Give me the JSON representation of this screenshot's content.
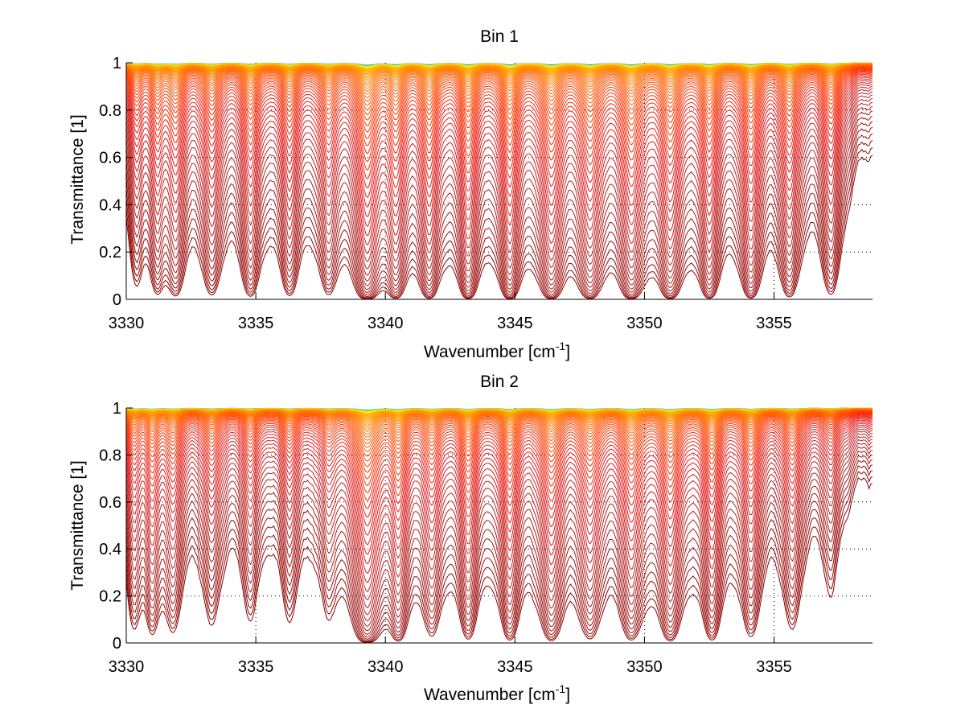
{
  "chart_data": [
    {
      "type": "line",
      "title": "Bin 1",
      "xlabel": "Wavenumber [cm^-1]",
      "xlabel_base": "Wavenumber [cm",
      "xlabel_sup": "-1",
      "xlabel_close": "]",
      "ylabel": "Transmittance [1]",
      "xlim": [
        3330,
        3358.8
      ],
      "ylim": [
        0,
        1
      ],
      "xticks": [
        3330,
        3335,
        3340,
        3345,
        3350,
        3355
      ],
      "xtick_labels": [
        "3330",
        "3335",
        "3340",
        "3345",
        "3350",
        "3355"
      ],
      "yticks": [
        0,
        0.2,
        0.4,
        0.6,
        0.8,
        1
      ],
      "ytick_labels": [
        "0",
        "0.2",
        "0.4",
        "0.6",
        "0.8",
        "1"
      ],
      "grid": "dotted",
      "legend": "none",
      "series_count": 60,
      "colormap": [
        "#8b0000",
        "#b22222",
        "#e41a1c",
        "#ff3300",
        "#ff6600",
        "#ff9900",
        "#ffcc00",
        "#ffff33",
        "#66cc66",
        "#3399cc"
      ],
      "description": "Family of transmittance spectra at increasing optical depth; each curve rises from near 0 (dark red) to near 1 (yellow/blue), with absorption lines recurring at approximately these wavenumbers.",
      "absorption_lines": [
        {
          "x": 3330.4,
          "depth": 0.35,
          "width": 0.25
        },
        {
          "x": 3331.2,
          "depth": 0.45,
          "width": 0.25
        },
        {
          "x": 3331.9,
          "depth": 0.55,
          "width": 0.3
        },
        {
          "x": 3333.3,
          "depth": 0.55,
          "width": 0.3
        },
        {
          "x": 3334.8,
          "depth": 0.6,
          "width": 0.3
        },
        {
          "x": 3336.3,
          "depth": 0.55,
          "width": 0.3
        },
        {
          "x": 3337.8,
          "depth": 0.5,
          "width": 0.3
        },
        {
          "x": 3339.3,
          "depth": 1.0,
          "width": 0.35
        },
        {
          "x": 3340.4,
          "depth": 0.7,
          "width": 0.3
        },
        {
          "x": 3341.7,
          "depth": 0.75,
          "width": 0.3
        },
        {
          "x": 3343.2,
          "depth": 0.8,
          "width": 0.3
        },
        {
          "x": 3344.8,
          "depth": 0.85,
          "width": 0.3
        },
        {
          "x": 3346.4,
          "depth": 0.85,
          "width": 0.35
        },
        {
          "x": 3347.9,
          "depth": 0.8,
          "width": 0.35
        },
        {
          "x": 3349.5,
          "depth": 0.85,
          "width": 0.35
        },
        {
          "x": 3351.0,
          "depth": 0.8,
          "width": 0.35
        },
        {
          "x": 3352.5,
          "depth": 0.75,
          "width": 0.3
        },
        {
          "x": 3354.1,
          "depth": 0.75,
          "width": 0.3
        },
        {
          "x": 3355.6,
          "depth": 0.65,
          "width": 0.3
        },
        {
          "x": 3357.2,
          "depth": 0.55,
          "width": 0.3
        }
      ]
    },
    {
      "type": "line",
      "title": "Bin 2",
      "xlabel": "Wavenumber [cm^-1]",
      "xlabel_base": "Wavenumber [cm",
      "xlabel_sup": "-1",
      "xlabel_close": "]",
      "ylabel": "Transmittance [1]",
      "xlim": [
        3330,
        3358.8
      ],
      "ylim": [
        0,
        1
      ],
      "xticks": [
        3330,
        3335,
        3340,
        3345,
        3350,
        3355
      ],
      "xtick_labels": [
        "3330",
        "3335",
        "3340",
        "3345",
        "3350",
        "3355"
      ],
      "yticks": [
        0,
        0.2,
        0.4,
        0.6,
        0.8,
        1
      ],
      "ytick_labels": [
        "0",
        "0.2",
        "0.4",
        "0.6",
        "0.8",
        "1"
      ],
      "grid": "dotted",
      "legend": "none",
      "series_count": 60,
      "colormap": [
        "#8b0000",
        "#b22222",
        "#e41a1c",
        "#ff3300",
        "#ff6600",
        "#ff9900",
        "#ffcc00",
        "#ffff33",
        "#66cc66",
        "#3399cc"
      ],
      "description": "Family of transmittance spectra at increasing optical depth; shallower absorption lines than Bin 1 except for the strong line near 3339.3 cm^-1.",
      "absorption_lines": [
        {
          "x": 3330.3,
          "depth": 0.35,
          "width": 0.25
        },
        {
          "x": 3331.0,
          "depth": 0.4,
          "width": 0.25
        },
        {
          "x": 3331.8,
          "depth": 0.4,
          "width": 0.3
        },
        {
          "x": 3333.3,
          "depth": 0.35,
          "width": 0.3
        },
        {
          "x": 3334.8,
          "depth": 0.3,
          "width": 0.3
        },
        {
          "x": 3336.3,
          "depth": 0.3,
          "width": 0.3
        },
        {
          "x": 3337.8,
          "depth": 0.25,
          "width": 0.3
        },
        {
          "x": 3339.3,
          "depth": 0.95,
          "width": 0.4
        },
        {
          "x": 3340.5,
          "depth": 0.6,
          "width": 0.3
        },
        {
          "x": 3341.8,
          "depth": 0.45,
          "width": 0.3
        },
        {
          "x": 3343.2,
          "depth": 0.55,
          "width": 0.3
        },
        {
          "x": 3344.8,
          "depth": 0.6,
          "width": 0.3
        },
        {
          "x": 3346.4,
          "depth": 0.65,
          "width": 0.35
        },
        {
          "x": 3347.9,
          "depth": 0.55,
          "width": 0.35
        },
        {
          "x": 3349.5,
          "depth": 0.6,
          "width": 0.35
        },
        {
          "x": 3351.0,
          "depth": 0.65,
          "width": 0.35
        },
        {
          "x": 3352.6,
          "depth": 0.6,
          "width": 0.3
        },
        {
          "x": 3354.1,
          "depth": 0.5,
          "width": 0.3
        },
        {
          "x": 3355.7,
          "depth": 0.4,
          "width": 0.3
        },
        {
          "x": 3357.2,
          "depth": 0.2,
          "width": 0.3
        }
      ]
    }
  ]
}
